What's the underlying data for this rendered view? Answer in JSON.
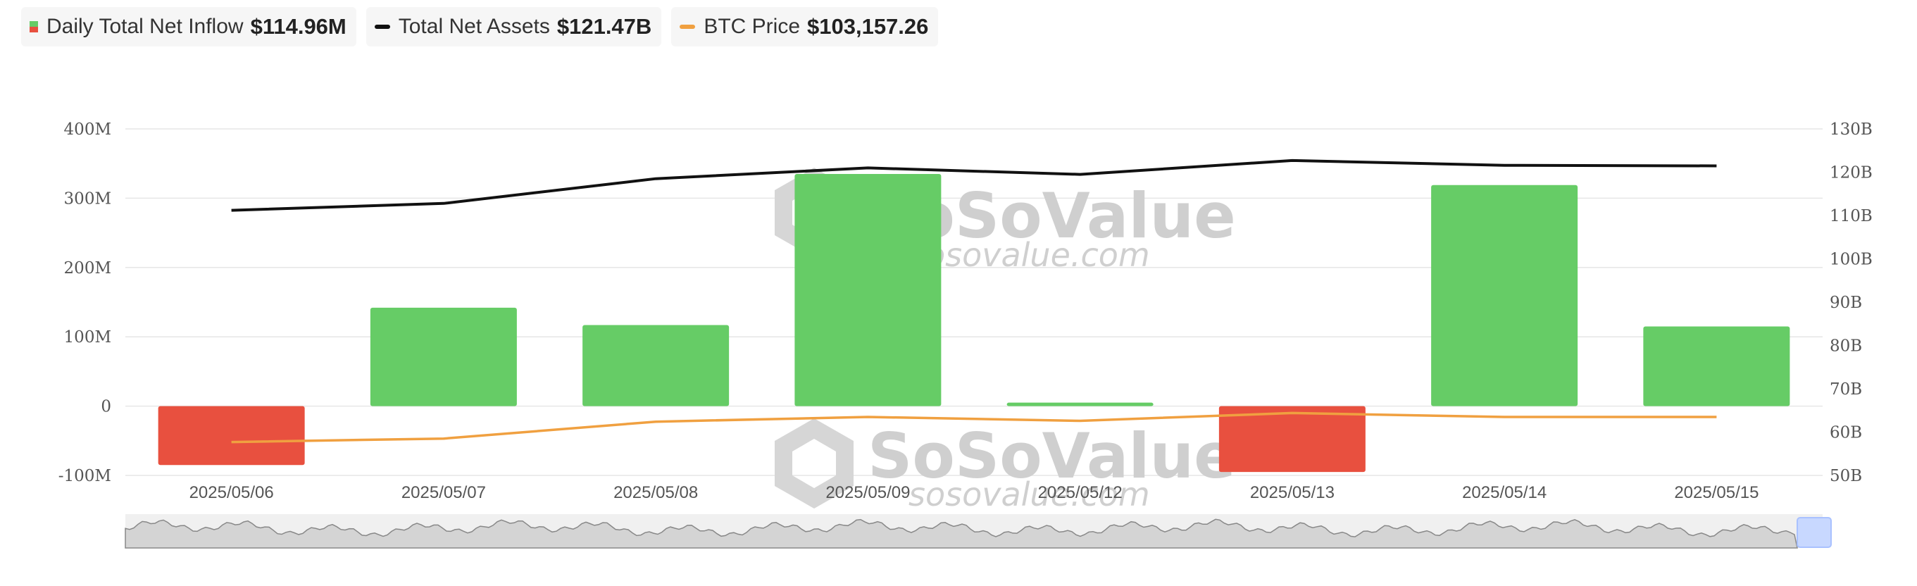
{
  "legend": {
    "inflow": {
      "label": "Daily Total Net Inflow",
      "value": "$114.96M"
    },
    "assets": {
      "label": "Total Net Assets",
      "value": "$121.47B"
    },
    "btc": {
      "label": "BTC Price",
      "value": "$103,157.26"
    }
  },
  "colors": {
    "positive": "#66cc66",
    "negative": "#e8503f",
    "assets_line": "#111111",
    "btc_line": "#f0a040",
    "grid": "#e6e6e6",
    "navigator_fill": "#d4d4d4",
    "navigator_handle": "#c8d8ff"
  },
  "watermark": {
    "brand": "SoSoValue",
    "site": "sosovalue.com"
  },
  "chart_data": {
    "type": "bar",
    "categories": [
      "2025/05/06",
      "2025/05/07",
      "2025/05/08",
      "2025/05/09",
      "2025/05/12",
      "2025/05/13",
      "2025/05/14",
      "2025/05/15"
    ],
    "series": [
      {
        "name": "Daily Total Net Inflow",
        "type": "bar",
        "axis": "left",
        "values": [
          -85,
          142,
          117,
          335,
          5,
          -95,
          319,
          115
        ]
      },
      {
        "name": "Total Net Assets",
        "type": "line",
        "axis": "right",
        "values": [
          111.2,
          112.8,
          118.5,
          121.0,
          119.5,
          122.7,
          121.6,
          121.47
        ]
      },
      {
        "name": "BTC Price",
        "type": "line",
        "axis": "right",
        "values": [
          57.7,
          58.5,
          62.4,
          63.5,
          62.6,
          64.4,
          63.5,
          63.5
        ]
      }
    ],
    "y_left": {
      "ticks": [
        "400M",
        "300M",
        "200M",
        "100M",
        "0",
        "-100M"
      ],
      "range": [
        -100,
        400
      ],
      "unit": "M"
    },
    "y_right": {
      "ticks": [
        "130B",
        "120B",
        "110B",
        "100B",
        "90B",
        "80B",
        "70B",
        "60B",
        "50B"
      ],
      "range": [
        50,
        130
      ],
      "unit": "B"
    },
    "grid": true,
    "legend_position": "top-left"
  }
}
